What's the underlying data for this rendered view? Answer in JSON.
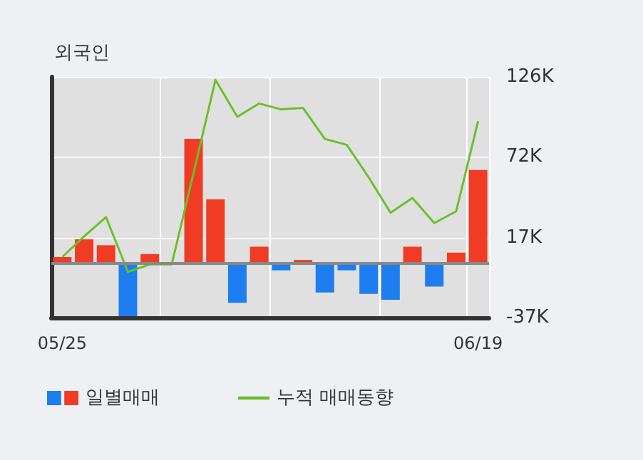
{
  "chart_data": {
    "type": "bar",
    "title": "외국인",
    "categories": [
      "05/25",
      null,
      null,
      null,
      null,
      null,
      null,
      null,
      null,
      null,
      null,
      null,
      null,
      null,
      null,
      null,
      null,
      null,
      null,
      "06/19"
    ],
    "series": [
      {
        "name": "일별매매",
        "colors": [
          "#f03c24",
          "#f03c24",
          "#f03c24",
          "#1e7ef0",
          "#f03c24",
          "#f03c24",
          "#f03c24",
          "#f03c24",
          "#1e7ef0",
          "#f03c24",
          "#1e7ef0",
          "#f03c24",
          "#1e7ef0",
          "#1e7ef0",
          "#1e7ef0",
          "#1e7ef0",
          "#f03c24",
          "#1e7ef0",
          "#f03c24",
          "#f03c24"
        ],
        "values": [
          4,
          16,
          12,
          -36,
          6,
          0,
          84,
          43,
          -27,
          11,
          -5,
          2,
          -20,
          -5,
          -21,
          -25,
          11,
          -16,
          7,
          63
        ]
      },
      {
        "name": "누적 매매동향",
        "type": "line",
        "color": "#6cbf2c",
        "values": [
          4,
          18,
          31,
          -6,
          -1,
          -1,
          61,
          124,
          99,
          108,
          104,
          105,
          84,
          80,
          58,
          34,
          44,
          27,
          35,
          96
        ]
      }
    ],
    "ylim": [
      -37,
      126
    ],
    "yticks": [
      {
        "value": -37,
        "label": "-37K"
      },
      {
        "value": 17,
        "label": "17K"
      },
      {
        "value": 72,
        "label": "72K"
      },
      {
        "value": 126,
        "label": "126K"
      }
    ],
    "ref_lines": [
      {
        "axis": "y",
        "value": 0,
        "color": "#888888"
      }
    ],
    "grid": true,
    "legend": "bottom",
    "marker": "none",
    "line_style": "solid"
  }
}
